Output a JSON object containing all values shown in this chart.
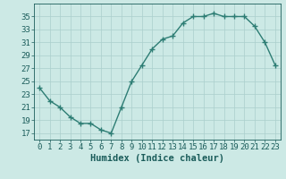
{
  "x": [
    0,
    1,
    2,
    3,
    4,
    5,
    6,
    7,
    8,
    9,
    10,
    11,
    12,
    13,
    14,
    15,
    16,
    17,
    18,
    19,
    20,
    21,
    22,
    23
  ],
  "y": [
    24,
    22,
    21,
    19.5,
    18.5,
    18.5,
    17.5,
    17,
    21,
    25,
    27.5,
    30,
    31.5,
    32,
    34,
    35,
    35,
    35.5,
    35,
    35,
    35,
    33.5,
    31,
    27.5
  ],
  "line_color": "#2d7d74",
  "marker": "+",
  "marker_size": 4,
  "bg_color": "#cce9e5",
  "grid_color": "#aacfcc",
  "tick_color": "#1a5c5a",
  "xlabel": "Humidex (Indice chaleur)",
  "xlabel_fontsize": 7.5,
  "xlim": [
    -0.5,
    23.5
  ],
  "ylim": [
    16,
    37
  ],
  "yticks": [
    17,
    19,
    21,
    23,
    25,
    27,
    29,
    31,
    33,
    35
  ],
  "xticks": [
    0,
    1,
    2,
    3,
    4,
    5,
    6,
    7,
    8,
    9,
    10,
    11,
    12,
    13,
    14,
    15,
    16,
    17,
    18,
    19,
    20,
    21,
    22,
    23
  ],
  "tick_label_fontsize": 6.5,
  "linewidth": 1.0,
  "markeredgewidth": 1.0
}
